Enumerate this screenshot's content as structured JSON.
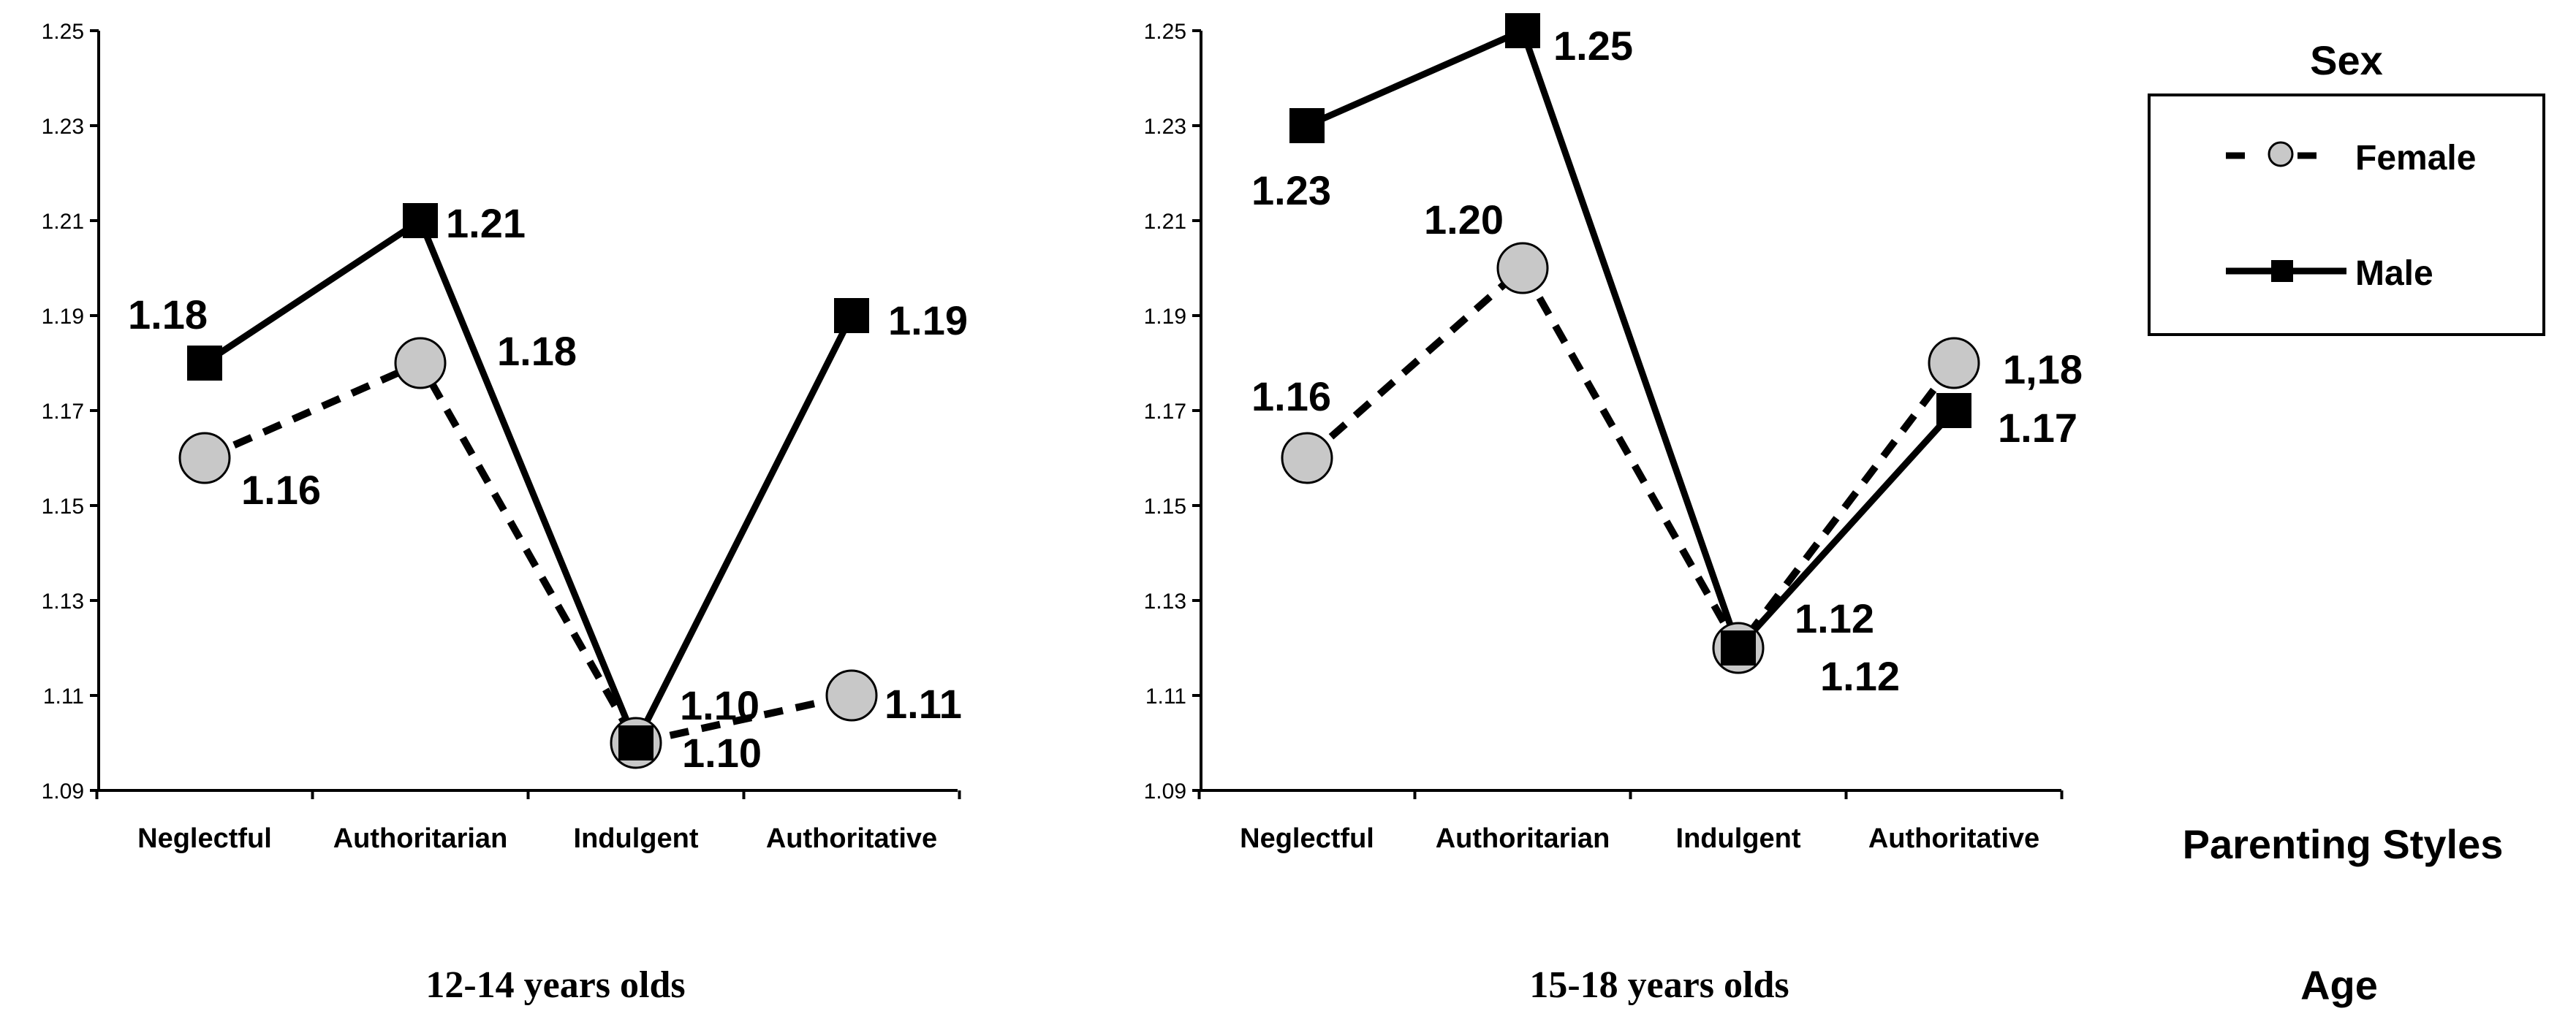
{
  "chart_data": [
    {
      "type": "line",
      "title": "12-14 years olds",
      "categories": [
        "Neglectful",
        "Authoritarian",
        "Indulgent",
        "Authoritative"
      ],
      "ylim": [
        1.09,
        1.25
      ],
      "yticks": [
        "1.09",
        "1.11",
        "1.13",
        "1.15",
        "1.17",
        "1.19",
        "1.21",
        "1.23",
        "1.25"
      ],
      "series": [
        {
          "name": "Female",
          "values": [
            1.16,
            1.18,
            1.1,
            1.11
          ],
          "labels": [
            "1.16",
            "1.18",
            "1.10",
            "1.11"
          ]
        },
        {
          "name": "Male",
          "values": [
            1.18,
            1.21,
            1.1,
            1.19
          ],
          "labels": [
            "1.18",
            "1.21",
            "1.10",
            "1.19"
          ]
        }
      ]
    },
    {
      "type": "line",
      "title": "15-18 years olds",
      "categories": [
        "Neglectful",
        "Authoritarian",
        "Indulgent",
        "Authoritative"
      ],
      "ylim": [
        1.09,
        1.25
      ],
      "yticks": [
        "1.09",
        "1.11",
        "1.13",
        "1.15",
        "1.17",
        "1.19",
        "1.21",
        "1.23",
        "1.25"
      ],
      "series": [
        {
          "name": "Female",
          "values": [
            1.16,
            1.2,
            1.12,
            1.18
          ],
          "labels": [
            "1.16",
            "1.20",
            "1.12",
            "1,18"
          ]
        },
        {
          "name": "Male",
          "values": [
            1.23,
            1.25,
            1.12,
            1.17
          ],
          "labels": [
            "1.23",
            "1.25",
            "1.12",
            "1.17"
          ]
        }
      ]
    }
  ],
  "legend": {
    "title": "Sex",
    "items": [
      {
        "name": "Female"
      },
      {
        "name": "Male"
      }
    ]
  },
  "side_labels": {
    "xaxis_title": "Parenting Styles",
    "age_title": "Age"
  },
  "colors": {
    "female_fill": "#c8c8c8",
    "female_stroke": "#000000",
    "male_fill": "#000000",
    "line": "#000000"
  }
}
